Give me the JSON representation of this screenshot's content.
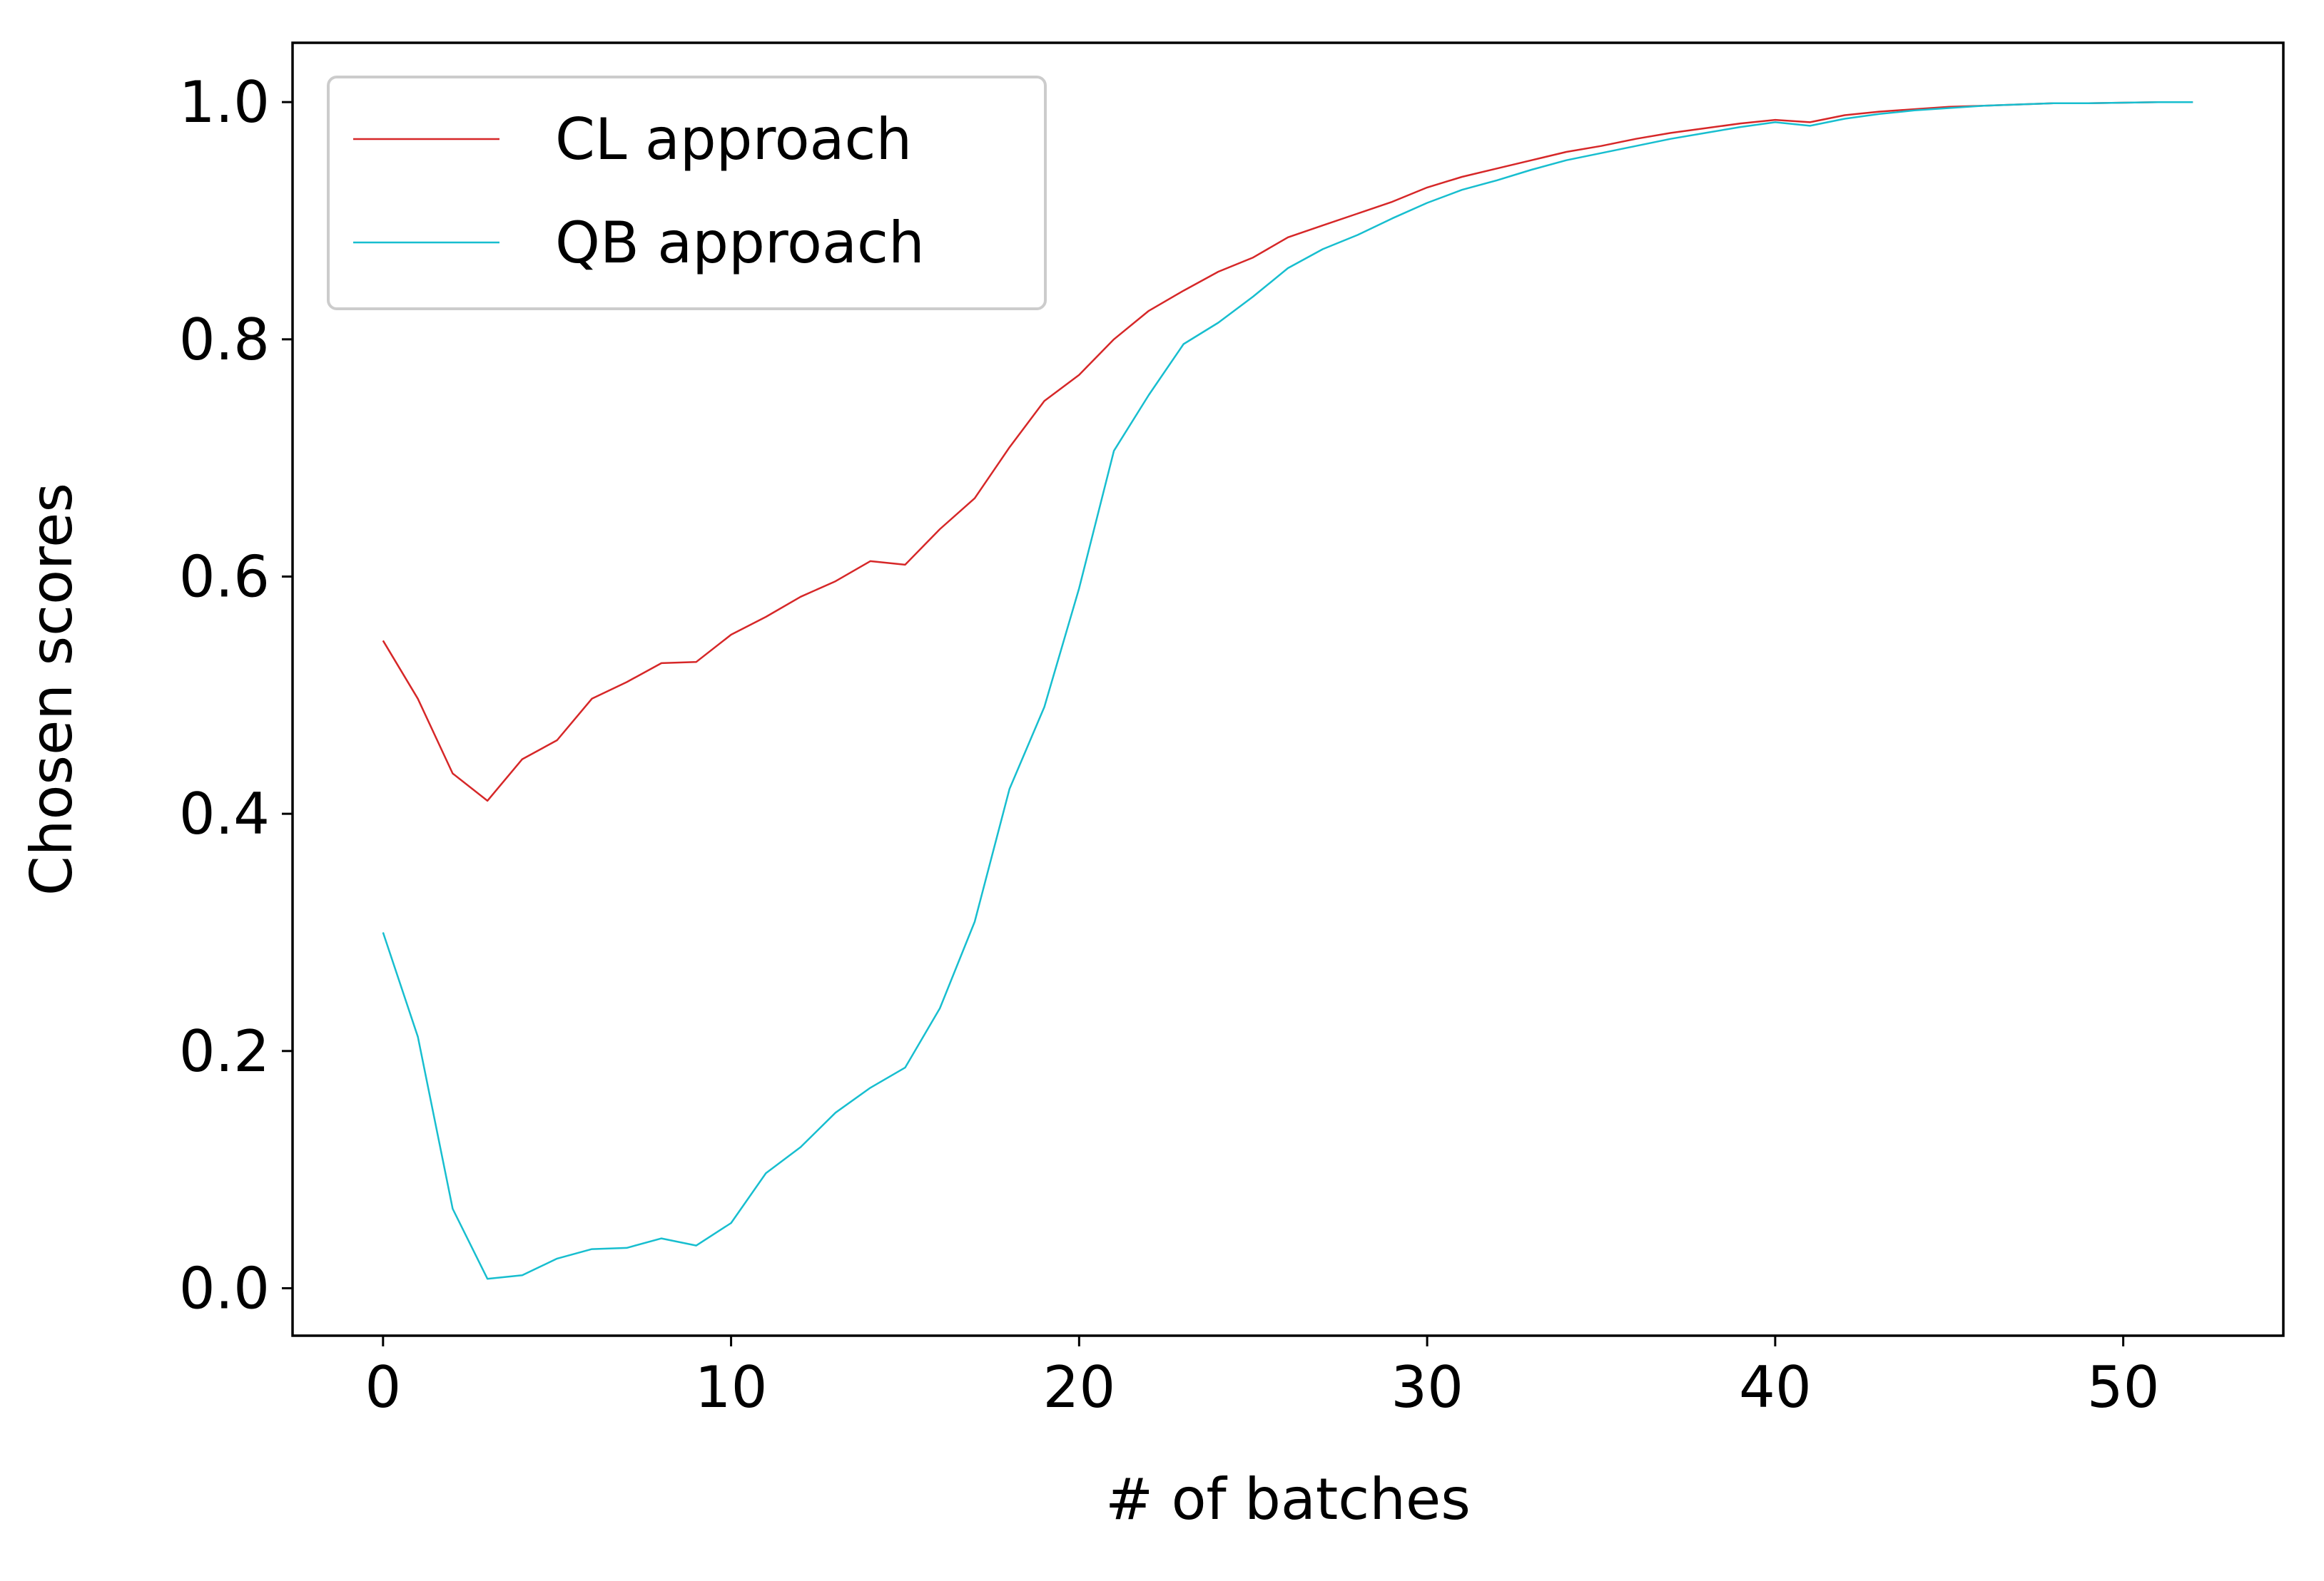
{
  "chart_data": {
    "type": "line",
    "title": "",
    "xlabel": "# of batches",
    "ylabel": "Chosen scores",
    "xlim": [
      -2.6,
      54.6
    ],
    "ylim": [
      -0.04,
      1.05
    ],
    "x_ticks": [
      0,
      10,
      20,
      30,
      40,
      50
    ],
    "x_tick_labels": [
      "0",
      "10",
      "20",
      "30",
      "40",
      "50"
    ],
    "y_ticks": [
      0.0,
      0.2,
      0.4,
      0.6,
      0.8,
      1.0
    ],
    "y_tick_labels": [
      "0.0",
      "0.2",
      "0.4",
      "0.6",
      "0.8",
      "1.0"
    ],
    "grid": false,
    "legend_position": "upper-left",
    "x": [
      0,
      1,
      2,
      3,
      4,
      5,
      6,
      7,
      8,
      9,
      10,
      11,
      12,
      13,
      14,
      15,
      16,
      17,
      18,
      19,
      20,
      21,
      22,
      23,
      24,
      25,
      26,
      27,
      28,
      29,
      30,
      31,
      32,
      33,
      34,
      35,
      36,
      37,
      38,
      39,
      40,
      41,
      42,
      43,
      44,
      45,
      46,
      47,
      48,
      49,
      50,
      51,
      52
    ],
    "series": [
      {
        "name": "CL approach",
        "color": "#d62728",
        "values": [
          0.546,
          0.497,
          0.434,
          0.411,
          0.446,
          0.462,
          0.497,
          0.511,
          0.527,
          0.528,
          0.551,
          0.566,
          0.583,
          0.596,
          0.613,
          0.61,
          0.64,
          0.666,
          0.709,
          0.748,
          0.77,
          0.8,
          0.824,
          0.841,
          0.857,
          0.869,
          0.886,
          0.896,
          0.906,
          0.916,
          0.928,
          0.937,
          0.944,
          0.951,
          0.958,
          0.963,
          0.969,
          0.974,
          0.978,
          0.982,
          0.985,
          0.983,
          0.989,
          0.992,
          0.994,
          0.996,
          0.997,
          0.998,
          0.999,
          0.999,
          0.9995,
          1.0,
          1.0
        ]
      },
      {
        "name": "QB approach",
        "color": "#17becf",
        "values": [
          0.3,
          0.212,
          0.067,
          0.008,
          0.011,
          0.025,
          0.033,
          0.034,
          0.042,
          0.036,
          0.055,
          0.097,
          0.119,
          0.148,
          0.169,
          0.186,
          0.236,
          0.309,
          0.421,
          0.49,
          0.59,
          0.706,
          0.753,
          0.796,
          0.814,
          0.836,
          0.86,
          0.876,
          0.888,
          0.902,
          0.915,
          0.926,
          0.934,
          0.943,
          0.951,
          0.957,
          0.963,
          0.969,
          0.974,
          0.979,
          0.983,
          0.98,
          0.986,
          0.99,
          0.993,
          0.995,
          0.997,
          0.998,
          0.999,
          0.999,
          0.9995,
          1.0,
          1.0
        ]
      }
    ]
  }
}
